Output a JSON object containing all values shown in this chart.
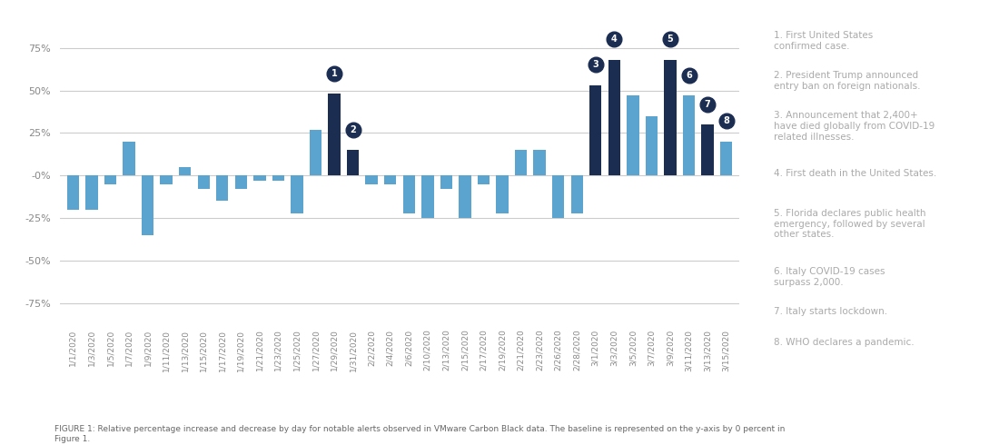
{
  "bar_dates": [
    "1/1/2020",
    "1/3/2020",
    "1/5/2020",
    "1/7/2020",
    "1/9/2020",
    "1/11/2020",
    "1/13/2020",
    "1/15/2020",
    "1/17/2020",
    "1/19/2020",
    "1/21/2020",
    "1/23/2020",
    "1/25/2020",
    "1/27/2020",
    "1/29/2020",
    "1/31/2020",
    "2/2/2020",
    "2/4/2020",
    "2/6/2020",
    "2/10/2020",
    "2/13/2020",
    "2/15/2020",
    "2/17/2020",
    "2/19/2020",
    "2/21/2020",
    "2/23/2020",
    "2/26/2020",
    "2/28/2020",
    "3/1/2020",
    "3/3/2020",
    "3/5/2020",
    "3/7/2020",
    "3/9/2020",
    "3/11/2020",
    "3/13/2020",
    "3/15/2020"
  ],
  "bar_vals": [
    -20,
    -20,
    -5,
    20,
    -35,
    -5,
    5,
    -8,
    -15,
    -8,
    -3,
    -3,
    -22,
    27,
    48,
    15,
    -5,
    -5,
    -22,
    -25,
    -8,
    -25,
    -5,
    -22,
    15,
    15,
    -25,
    -22,
    53,
    68,
    47,
    35,
    68,
    47,
    30,
    20
  ],
  "bar_dark": [
    false,
    false,
    false,
    false,
    false,
    false,
    false,
    false,
    false,
    false,
    false,
    false,
    false,
    false,
    true,
    true,
    false,
    false,
    false,
    false,
    false,
    false,
    false,
    false,
    false,
    false,
    false,
    false,
    true,
    true,
    false,
    false,
    true,
    false,
    true,
    false
  ],
  "annotations_on_bars": {
    "14": 1,
    "15": 2,
    "28": 3,
    "29": 4,
    "32": 5,
    "33": 6,
    "34": 7,
    "35": 8
  },
  "light_blue": "#5BA4CF",
  "dark_blue": "#1C2D52",
  "bg_color": "#FFFFFF",
  "grid_color": "#CCCCCC",
  "ylim": [
    -85,
    90
  ],
  "yticks": [
    -75,
    -50,
    -25,
    0,
    25,
    50,
    75
  ],
  "figure_caption": "FIGURE 1: Relative percentage increase and decrease by day for notable alerts observed in VMware Carbon Black data. The baseline is represented on the y-axis by 0 percent in\nFigure 1.",
  "legend_text": [
    "1. First United States\nconfirmed case.",
    "2. President Trump announced\nentry ban on foreign nationals.",
    "3. Announcement that 2,400+\nhave died globally from COVID-19\nrelated illnesses.",
    "4. First death in the United States.",
    "5. Florida declares public health\nemergency, followed by several\nother states.",
    "6. Italy COVID-19 cases\nsurpass 2,000.",
    "7. Italy starts lockdown.",
    "8. WHO declares a pandemic."
  ]
}
